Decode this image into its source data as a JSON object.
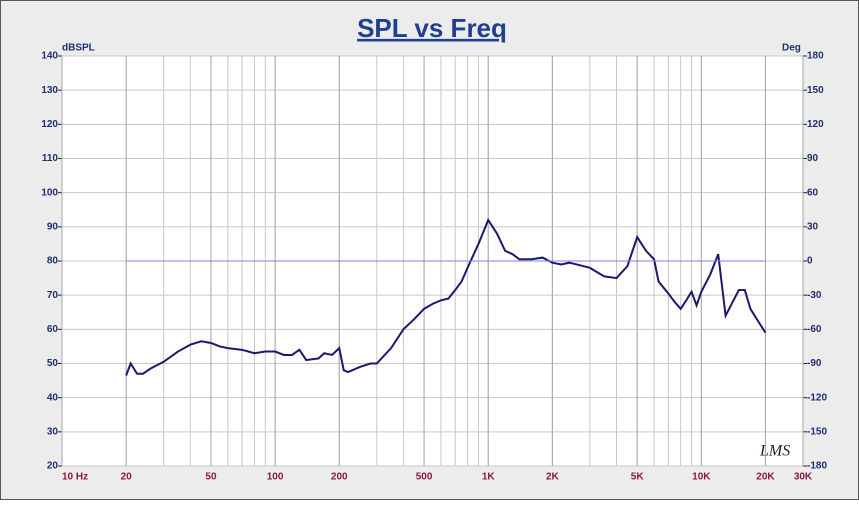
{
  "chart_data": {
    "type": "line",
    "title": "SPL vs Freq",
    "y_label": "dBSPL",
    "y2_label": "Deg",
    "annotation": "LMS",
    "xscale": "log",
    "grid": true,
    "xlim": [
      10,
      30000
    ],
    "xticks": [
      {
        "value": 10,
        "label": "10  Hz"
      },
      20,
      50,
      100,
      200,
      500,
      {
        "value": 1000,
        "label": "1K"
      },
      {
        "value": 2000,
        "label": "2K"
      },
      {
        "value": 5000,
        "label": "5K"
      },
      {
        "value": 10000,
        "label": "10K"
      },
      {
        "value": 20000,
        "label": "20K"
      },
      {
        "value": 30000,
        "label": "30K"
      }
    ],
    "ylim": [
      20,
      140
    ],
    "yticks": [
      20,
      30,
      40,
      50,
      60,
      70,
      80,
      90,
      100,
      110,
      120,
      130,
      140
    ],
    "y2lim": [
      -180,
      180
    ],
    "y2ticks": [
      -180,
      -150,
      -120,
      -90,
      -60,
      -30,
      0,
      30,
      60,
      90,
      120,
      150,
      180
    ],
    "series": [
      {
        "color": "#1a1a6e",
        "x": [
          20,
          21,
          22.5,
          24,
          26,
          30,
          35,
          40,
          45,
          50,
          55,
          60,
          70,
          80,
          90,
          100,
          110,
          120,
          130,
          140,
          160,
          170,
          185,
          200,
          210,
          220,
          250,
          280,
          300,
          350,
          400,
          450,
          500,
          550,
          600,
          650,
          700,
          750,
          800,
          900,
          1000,
          1100,
          1200,
          1300,
          1400,
          1600,
          1800,
          2000,
          2200,
          2400,
          2600,
          3000,
          3500,
          4000,
          4500,
          5000,
          5500,
          6000,
          6300,
          7000,
          7500,
          8000,
          8500,
          9000,
          9500,
          10000,
          11000,
          12000,
          13000,
          15000,
          16000,
          17000,
          18000,
          20000
        ],
        "values": [
          46.5,
          50,
          47,
          47,
          48.5,
          50.5,
          53.5,
          55.5,
          56.5,
          56,
          55,
          54.5,
          54,
          53,
          53.5,
          53.5,
          52.5,
          52.5,
          54,
          51,
          51.5,
          53,
          52.5,
          54.5,
          48,
          47.5,
          49,
          50,
          50,
          54.5,
          60,
          63,
          66,
          67.5,
          68.5,
          69,
          71.5,
          74,
          78,
          85,
          92,
          88,
          83,
          82,
          80.5,
          80.5,
          81,
          79.5,
          79,
          79.5,
          79,
          78,
          75.5,
          75,
          78.5,
          87,
          83,
          80.5,
          74,
          70.5,
          68,
          66,
          68.5,
          71,
          67,
          71,
          76,
          82,
          64,
          71.5,
          71.5,
          66,
          63.5,
          59
        ]
      },
      {
        "color": "#8080e0",
        "axis": "y2",
        "x": [
          20,
          20000
        ],
        "values": [
          0,
          0
        ]
      }
    ]
  }
}
